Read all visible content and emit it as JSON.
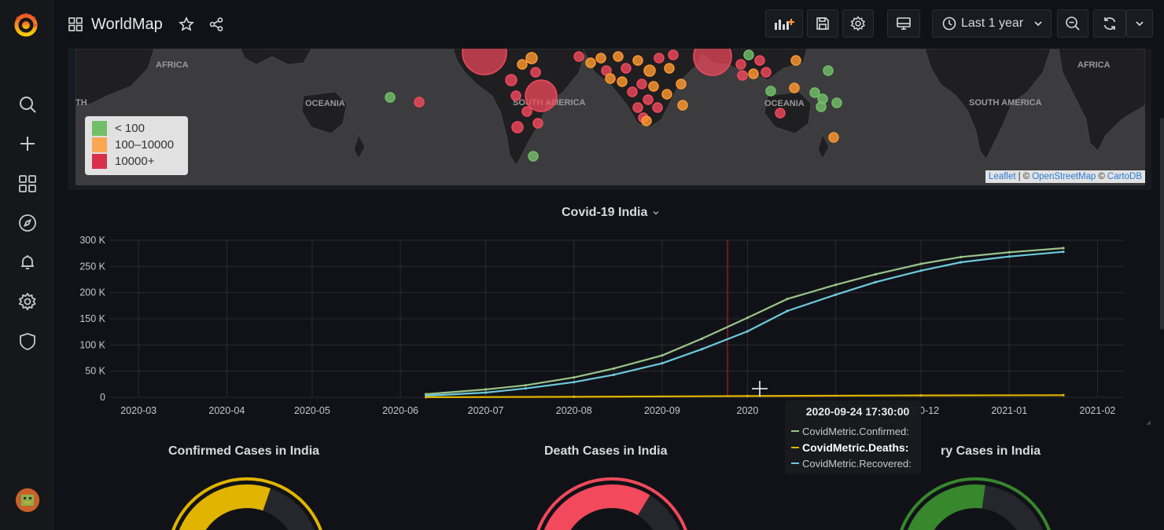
{
  "topbar": {
    "title": "WorldMap",
    "time_range": "Last 1 year"
  },
  "map": {
    "labels": [
      {
        "text": "AFRICA"
      },
      {
        "text": "OCEANIA"
      },
      {
        "text": "SOUTH AMERICA"
      },
      {
        "text": "OCEANIA"
      },
      {
        "text": "SOUTH AMERICA"
      },
      {
        "text": "AFRICA"
      },
      {
        "text": "TH"
      }
    ],
    "legend": [
      {
        "label": "< 100",
        "color": "#73bf69"
      },
      {
        "label": "100–10000",
        "color": "#ff9830"
      },
      {
        "label": "10000+",
        "color": "#f2495c"
      }
    ],
    "attribution": {
      "leaflet": "Leaflet",
      "sep": " | © ",
      "osm": "OpenStreetMap",
      "sep2": " © ",
      "carto": "CartoDB"
    }
  },
  "chart": {
    "title": "Covid-19 India"
  },
  "chart_data": {
    "type": "line",
    "title": "Covid-19 India",
    "xlabel": "",
    "ylabel": "",
    "x_ticks": [
      "2020-03",
      "2020-04",
      "2020-05",
      "2020-06",
      "2020-07",
      "2020-08",
      "2020-09",
      "2020",
      "2020-12",
      "2021-01",
      "2021-02"
    ],
    "y_ticks": [
      "0",
      "50 K",
      "100 K",
      "150 K",
      "200 K",
      "250 K",
      "300 K"
    ],
    "ylim": [
      0,
      300000
    ],
    "xlim": [
      "2020-02-20",
      "2021-02-10"
    ],
    "grid": true,
    "legend": "none",
    "series": [
      {
        "name": "CovidMetric.Confirmed",
        "color": "#9ac48a",
        "x": [
          "2020-06-10",
          "2020-07-01",
          "2020-07-15",
          "2020-08-01",
          "2020-08-15",
          "2020-09-01",
          "2020-09-15",
          "2020-10-01",
          "2020-10-15",
          "2020-11-01",
          "2020-11-15",
          "2020-12-01",
          "2020-12-15",
          "2021-01-01",
          "2021-01-20"
        ],
        "values": [
          6000,
          15000,
          23000,
          38000,
          55000,
          80000,
          112000,
          152000,
          188000,
          215000,
          235000,
          255000,
          268000,
          277000,
          285000
        ]
      },
      {
        "name": "CovidMetric.Recovered",
        "color": "#6ccadc",
        "x": [
          "2020-06-10",
          "2020-07-01",
          "2020-07-15",
          "2020-08-01",
          "2020-08-15",
          "2020-09-01",
          "2020-09-15",
          "2020-10-01",
          "2020-10-15",
          "2020-11-01",
          "2020-11-15",
          "2020-12-01",
          "2020-12-15",
          "2021-01-01",
          "2021-01-20"
        ],
        "values": [
          3000,
          9000,
          17000,
          29000,
          43000,
          65000,
          92000,
          126000,
          165000,
          196000,
          220000,
          242000,
          258000,
          269000,
          278000
        ]
      },
      {
        "name": "CovidMetric.Deaths",
        "color": "#e0b400",
        "x": [
          "2020-06-10",
          "2020-08-01",
          "2020-10-01",
          "2020-12-01",
          "2021-01-20"
        ],
        "values": [
          100,
          900,
          2400,
          3600,
          4100
        ]
      }
    ]
  },
  "tooltip": {
    "time": "2020-09-24 17:30:00",
    "rows": [
      {
        "label": "CovidMetric.Confirmed:",
        "color": "#9ac48a"
      },
      {
        "label": "CovidMetric.Deaths:",
        "color": "#e0b400"
      },
      {
        "label": "CovidMetric.Recovered:",
        "color": "#6ccadc"
      }
    ]
  },
  "gauges": [
    {
      "title": "Confirmed Cases in India",
      "color": "#e0b400",
      "fill": 0.62
    },
    {
      "title": "Death Cases in India",
      "color": "#f2495c",
      "fill": 0.7
    },
    {
      "title": "ry Cases in India",
      "color": "#37872d",
      "fill": 0.55
    }
  ]
}
